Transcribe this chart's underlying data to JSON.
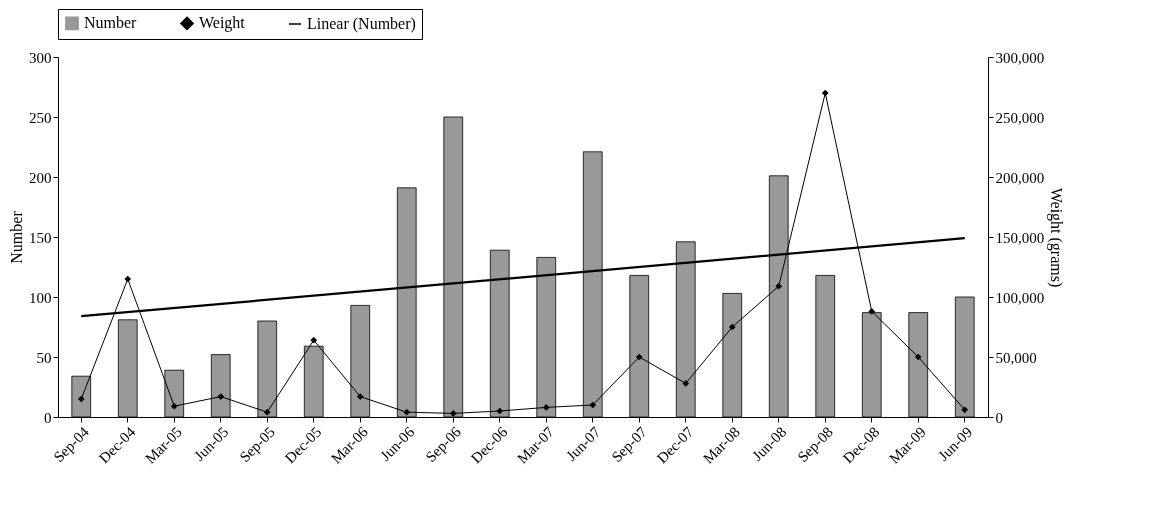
{
  "chart_data": {
    "type": "bar",
    "categories": [
      "Sep-04",
      "Dec-04",
      "Mar-05",
      "Jun-05",
      "Sep-05",
      "Dec-05",
      "Mar-06",
      "Jun-06",
      "Sep-06",
      "Dec-06",
      "Mar-07",
      "Jun-07",
      "Sep-07",
      "Dec-07",
      "Mar-08",
      "Jun-08",
      "Sep-08",
      "Dec-08",
      "Mar-09",
      "Jun-09"
    ],
    "series": [
      {
        "name": "Number",
        "color": "#999999",
        "values": [
          34,
          81,
          39,
          52,
          80,
          59,
          93,
          191,
          250,
          139,
          133,
          221,
          118,
          146,
          103,
          201,
          118,
          87,
          87,
          100
        ]
      },
      {
        "name": "Weight",
        "type": "line",
        "axis": "y2",
        "marker": "diamond",
        "color": "#000000",
        "values": [
          15000,
          115000,
          9000,
          17000,
          4000,
          64000,
          17000,
          4000,
          3000,
          5000,
          8000,
          10000,
          50000,
          28000,
          75000,
          109000,
          270000,
          88000,
          50000,
          6000
        ]
      },
      {
        "name": "Linear (Number)",
        "type": "line",
        "marker": "none",
        "color": "#000000",
        "x": [
          "Sep-04",
          "Jun-09"
        ],
        "values": [
          84,
          149
        ]
      }
    ],
    "ylabel": "Number",
    "y2label": "Weight (grams)",
    "ylim": [
      0,
      300
    ],
    "yticks": [
      0,
      50,
      100,
      150,
      200,
      250,
      300
    ],
    "y2lim": [
      0,
      300000
    ],
    "y2ticks": [
      0,
      {
        "value": 50000,
        "label": "50,000"
      },
      {
        "value": 100000,
        "label": "100,000"
      },
      {
        "value": 150000,
        "label": "150,000"
      },
      {
        "value": 200000,
        "label": "200,000"
      },
      {
        "value": 250000,
        "label": "250,000"
      },
      {
        "value": 300000,
        "label": "300,000"
      }
    ],
    "legend": "top",
    "grid": false
  }
}
